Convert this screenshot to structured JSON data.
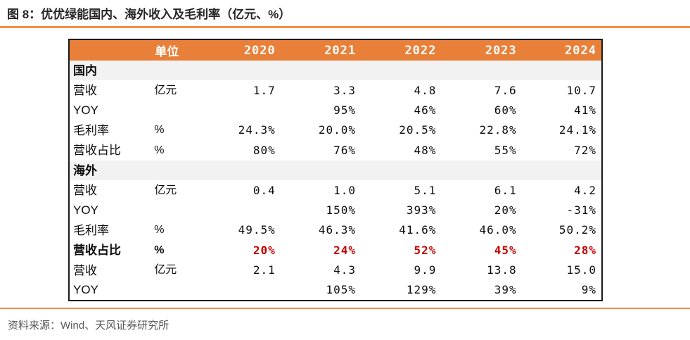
{
  "title": "图 8：优优绿能国内、海外收入及毛利率（亿元、%）",
  "source": "资料来源：Wind、天风证券研究所",
  "colors": {
    "header_bg": "#E9803A",
    "section_row_bg": "#F2F2F2",
    "highlight_red": "#C00000",
    "rule_orange": "#F09048",
    "table_border": "#1A1A1A",
    "source_gray": "#595959"
  },
  "table": {
    "header": [
      "",
      "单位",
      "2020",
      "2021",
      "2022",
      "2023",
      "2024"
    ],
    "rows": [
      {
        "type": "section",
        "label": "国内"
      },
      {
        "type": "data",
        "label": "营收",
        "unit": "亿元",
        "values": [
          "1.7",
          "3.3",
          "4.8",
          "7.6",
          "10.7"
        ]
      },
      {
        "type": "data",
        "label": "YOY",
        "unit": "",
        "values": [
          "",
          "95%",
          "46%",
          "60%",
          "41%"
        ]
      },
      {
        "type": "data",
        "label": "毛利率",
        "unit": "%",
        "values": [
          "24.3%",
          "20.0%",
          "20.5%",
          "22.8%",
          "24.1%"
        ]
      },
      {
        "type": "data",
        "label": "营收占比",
        "unit": "%",
        "values": [
          "80%",
          "76%",
          "48%",
          "55%",
          "72%"
        ]
      },
      {
        "type": "section",
        "label": "海外"
      },
      {
        "type": "data",
        "label": "营收",
        "unit": "亿元",
        "values": [
          "0.4",
          "1.0",
          "5.1",
          "6.1",
          "4.2"
        ]
      },
      {
        "type": "data",
        "label": "YOY",
        "unit": "",
        "values": [
          "",
          "150%",
          "393%",
          "20%",
          "-31%"
        ]
      },
      {
        "type": "data",
        "label": "毛利率",
        "unit": "%",
        "values": [
          "49.5%",
          "46.3%",
          "41.6%",
          "46.0%",
          "50.2%"
        ]
      },
      {
        "type": "data",
        "label": "营收占比",
        "unit": "%",
        "highlight": true,
        "values": [
          "20%",
          "24%",
          "52%",
          "45%",
          "28%"
        ]
      },
      {
        "type": "data",
        "label": "营收",
        "unit": "亿元",
        "values": [
          "2.1",
          "4.3",
          "9.9",
          "13.8",
          "15.0"
        ]
      },
      {
        "type": "data",
        "label": "YOY",
        "unit": "",
        "values": [
          "",
          "105%",
          "129%",
          "39%",
          "9%"
        ]
      }
    ]
  },
  "chart_data": {
    "type": "table",
    "title": "图 8：优优绿能国内、海外收入及毛利率（亿元、%）",
    "columns": [
      "",
      "单位",
      "2020",
      "2021",
      "2022",
      "2023",
      "2024"
    ],
    "rows": [
      [
        "国内",
        "",
        "",
        "",
        "",
        "",
        ""
      ],
      [
        "营收",
        "亿元",
        "1.7",
        "3.3",
        "4.8",
        "7.6",
        "10.7"
      ],
      [
        "YOY",
        "",
        "",
        "95%",
        "46%",
        "60%",
        "41%"
      ],
      [
        "毛利率",
        "%",
        "24.3%",
        "20.0%",
        "20.5%",
        "22.8%",
        "24.1%"
      ],
      [
        "营收占比",
        "%",
        "80%",
        "76%",
        "48%",
        "55%",
        "72%"
      ],
      [
        "海外",
        "",
        "",
        "",
        "",
        "",
        ""
      ],
      [
        "营收",
        "亿元",
        "0.4",
        "1.0",
        "5.1",
        "6.1",
        "4.2"
      ],
      [
        "YOY",
        "",
        "",
        "150%",
        "393%",
        "20%",
        "-31%"
      ],
      [
        "毛利率",
        "%",
        "49.5%",
        "46.3%",
        "41.6%",
        "46.0%",
        "50.2%"
      ],
      [
        "营收占比",
        "%",
        "20%",
        "24%",
        "52%",
        "45%",
        "28%"
      ],
      [
        "营收",
        "亿元",
        "2.1",
        "4.3",
        "9.9",
        "13.8",
        "15.0"
      ],
      [
        "YOY",
        "",
        "",
        "105%",
        "129%",
        "39%",
        "9%"
      ]
    ],
    "notes": {
      "section_rows": [
        "国内",
        "海外"
      ],
      "highlighted_row": "海外 营收占比 (values in bold red: 20%, 24%, 52%, 45%, 28%)",
      "source": "资料来源：Wind、天风证券研究所"
    }
  }
}
